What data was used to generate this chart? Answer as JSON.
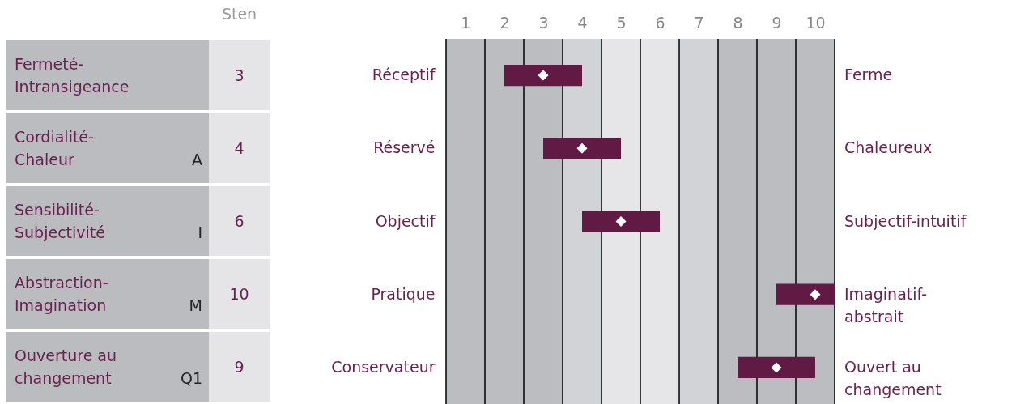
{
  "chart_data": [
    {
      "type": "other",
      "xlabel": "Sten",
      "categories": [
        "Fermeté-Intransigeance",
        "Cordialité-Chaleur",
        "Sensibilité-Subjectivité",
        "Abstraction-Imagination",
        "Ouverture au changement"
      ],
      "values": [
        3,
        4,
        6,
        10,
        9
      ],
      "data_labels": true,
      "annotations": [
        {
          "text": "A",
          "y": "Cordialité-Chaleur"
        },
        {
          "text": "I",
          "y": "Sensibilité-Subjectivité"
        },
        {
          "text": "M",
          "y": "Abstraction-Imagination"
        },
        {
          "text": "Q1",
          "y": "Ouverture au changement"
        }
      ]
    },
    {
      "type": "bar",
      "orientation": "horizontal",
      "categories": [
        "Réceptif",
        "Réservé",
        "Objectif",
        "Pratique",
        "Conservateur"
      ],
      "marker": "diamond",
      "series": [
        {
          "type": "bar",
          "color": "#611a43",
          "base": [
            2,
            3,
            4,
            9,
            8
          ],
          "values": [
            2,
            2,
            2,
            1.5,
            2
          ]
        },
        {
          "type": "scatter",
          "color": "#ffffff",
          "values": [
            3,
            4,
            5,
            10,
            9
          ]
        }
      ],
      "xlim": [
        0.5,
        10.5
      ],
      "xticks": [
        1,
        2,
        3,
        4,
        5,
        6,
        7,
        8,
        9,
        10
      ],
      "bands": [
        {
          "axis": "x",
          "from": 0.5,
          "to": 3.5,
          "color": "#bcbdc1"
        },
        {
          "axis": "x",
          "from": 3.5,
          "to": 4.5,
          "color": "#d2d3d6"
        },
        {
          "axis": "x",
          "from": 4.5,
          "to": 6.5,
          "color": "#e6e6e8"
        },
        {
          "axis": "x",
          "from": 6.5,
          "to": 7.5,
          "color": "#d2d3d6"
        },
        {
          "axis": "x",
          "from": 7.5,
          "to": 10.5,
          "color": "#bcbdc1"
        }
      ],
      "ref_lines": [
        {
          "axis": "x",
          "value": 0.5,
          "color": "#000000"
        },
        {
          "axis": "x",
          "value": 1.5,
          "color": "#000000"
        },
        {
          "axis": "x",
          "value": 2.5,
          "color": "#000000"
        },
        {
          "axis": "x",
          "value": 3.5,
          "color": "#000000"
        },
        {
          "axis": "x",
          "value": 4.5,
          "color": "#000000"
        },
        {
          "axis": "x",
          "value": 5.5,
          "color": "#000000"
        },
        {
          "axis": "x",
          "value": 6.5,
          "color": "#000000"
        },
        {
          "axis": "x",
          "value": 7.5,
          "color": "#000000"
        },
        {
          "axis": "x",
          "value": 8.5,
          "color": "#000000"
        },
        {
          "axis": "x",
          "value": 9.5,
          "color": "#000000"
        },
        {
          "axis": "x",
          "value": 10.5,
          "color": "#000000"
        }
      ],
      "annotations": [
        "Ferme",
        "Chaleureux",
        "Subjectif-intuitif",
        "Imaginatif-abstrait",
        "Ouvert au changement"
      ]
    }
  ]
}
